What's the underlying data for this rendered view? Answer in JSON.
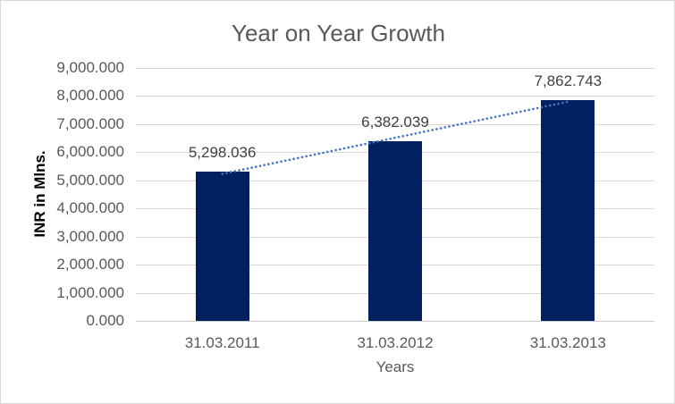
{
  "window": {
    "background": "#FFFFFF",
    "border_color": "#D9D9D9"
  },
  "chart_data": {
    "type": "bar",
    "title": "Year on Year Growth",
    "xlabel": "Years",
    "ylabel": "INR in Mlns.",
    "categories": [
      "31.03.2011",
      "31.03.2012",
      "31.03.2013"
    ],
    "values": [
      5298.036,
      6382.039,
      7862.743
    ],
    "data_labels": [
      "5,298.036",
      "6,382.039",
      "7,862.743"
    ],
    "ylim": [
      0,
      9000
    ],
    "ytick_step": 1000,
    "ytick_labels": [
      "0.000",
      "1,000.000",
      "2,000.000",
      "3,000.000",
      "4,000.000",
      "5,000.000",
      "6,000.000",
      "7,000.000",
      "8,000.000",
      "9,000.000"
    ],
    "grid": "horizontal",
    "legend": "none",
    "trendline": {
      "type": "linear",
      "style": "dotted",
      "color": "#4472C4"
    },
    "colors": {
      "bar": "#002060",
      "gridline": "#D9D9D9",
      "axis_line": "#CDCDCD",
      "title_text": "#595959",
      "tick_text": "#595959",
      "data_label_text": "#404040",
      "y_axis_title_text": "#000000"
    }
  }
}
